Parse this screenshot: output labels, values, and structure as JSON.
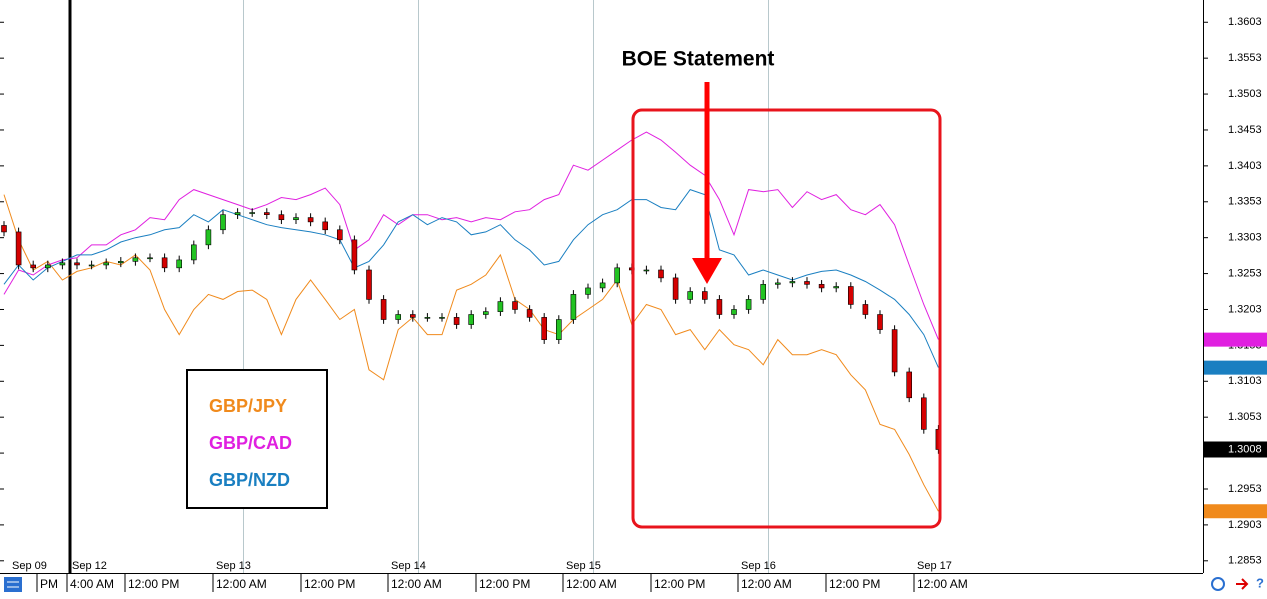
{
  "chart_data": {
    "type": "candlestick",
    "categories": [
      null,
      null,
      null,
      null,
      null,
      null,
      null,
      null,
      null,
      null,
      null,
      null,
      null,
      null,
      null,
      null,
      null,
      null,
      null,
      null,
      null,
      null,
      null,
      null,
      null,
      null,
      null,
      null,
      null,
      null,
      null,
      null,
      null,
      null,
      null,
      null,
      null,
      null,
      null,
      null,
      null,
      null,
      null,
      null,
      null,
      null,
      null,
      null,
      null,
      null,
      null,
      null,
      null,
      null,
      null,
      null,
      null,
      null,
      null,
      null,
      null,
      null,
      null,
      null,
      null
    ],
    "open": [
      1.332,
      1.3311,
      1.3265,
      1.3261,
      1.3265,
      1.3268,
      1.3265,
      1.3265,
      1.3268,
      1.327,
      1.3275,
      1.3275,
      1.3261,
      1.3272,
      1.3293,
      1.3314,
      1.3335,
      1.3338,
      1.3338,
      1.3335,
      1.3328,
      1.3331,
      1.3325,
      1.3314,
      1.33,
      1.3258,
      1.3217,
      1.3189,
      1.3196,
      1.3192,
      1.3192,
      1.3192,
      1.3182,
      1.3196,
      1.32,
      1.3214,
      1.3203,
      1.3192,
      1.3161,
      1.3189,
      1.3224,
      1.3233,
      1.324,
      1.3261,
      1.3258,
      1.3258,
      1.3247,
      1.3217,
      1.3228,
      1.3217,
      1.3196,
      1.3203,
      1.3217,
      1.3238,
      1.324,
      1.3242,
      1.3238,
      1.3233,
      1.3235,
      1.321,
      1.3196,
      1.3175,
      1.3116,
      1.308,
      1.3036
    ],
    "high": [
      1.3326,
      1.3317,
      1.3271,
      1.3271,
      1.3274,
      1.3274,
      1.3271,
      1.3274,
      1.3276,
      1.3281,
      1.3281,
      1.3281,
      1.3278,
      1.3299,
      1.332,
      1.3341,
      1.3344,
      1.3344,
      1.3344,
      1.3341,
      1.3337,
      1.3337,
      1.3331,
      1.332,
      1.3306,
      1.3264,
      1.3223,
      1.3202,
      1.3202,
      1.3198,
      1.3198,
      1.3198,
      1.3202,
      1.3206,
      1.322,
      1.322,
      1.3209,
      1.3198,
      1.3195,
      1.323,
      1.3239,
      1.3246,
      1.3267,
      1.3267,
      1.3264,
      1.3264,
      1.3253,
      1.3234,
      1.3234,
      1.3223,
      1.3209,
      1.3223,
      1.3244,
      1.3246,
      1.3248,
      1.3248,
      1.3244,
      1.3241,
      1.3241,
      1.3216,
      1.3202,
      1.3181,
      1.3122,
      1.3086,
      1.3042
    ],
    "low": [
      1.3305,
      1.3259,
      1.3255,
      1.3255,
      1.3259,
      1.3259,
      1.3259,
      1.3259,
      1.3262,
      1.3264,
      1.3269,
      1.3255,
      1.3255,
      1.3266,
      1.3287,
      1.3308,
      1.3329,
      1.3332,
      1.3329,
      1.3322,
      1.3322,
      1.3319,
      1.3308,
      1.3294,
      1.3252,
      1.3211,
      1.3183,
      1.3183,
      1.3186,
      1.3186,
      1.3186,
      1.3176,
      1.3176,
      1.319,
      1.3194,
      1.3197,
      1.3186,
      1.3155,
      1.3155,
      1.3183,
      1.3218,
      1.3227,
      1.3234,
      1.3252,
      1.3252,
      1.3241,
      1.3211,
      1.3211,
      1.3211,
      1.319,
      1.319,
      1.3197,
      1.3211,
      1.3232,
      1.3234,
      1.3232,
      1.3227,
      1.3227,
      1.3204,
      1.319,
      1.3169,
      1.311,
      1.3074,
      1.303,
      1.3002
    ],
    "close": [
      1.3311,
      1.3265,
      1.3261,
      1.3265,
      1.3268,
      1.3265,
      1.3265,
      1.3268,
      1.327,
      1.3275,
      1.3275,
      1.3261,
      1.3272,
      1.3293,
      1.3314,
      1.3335,
      1.3338,
      1.3338,
      1.3335,
      1.3328,
      1.3331,
      1.3325,
      1.3314,
      1.33,
      1.3258,
      1.3217,
      1.3189,
      1.3196,
      1.3192,
      1.3192,
      1.3192,
      1.3182,
      1.3196,
      1.32,
      1.3214,
      1.3203,
      1.3192,
      1.3161,
      1.3189,
      1.3224,
      1.3233,
      1.324,
      1.3261,
      1.3258,
      1.3258,
      1.3247,
      1.3217,
      1.3228,
      1.3217,
      1.3196,
      1.3203,
      1.3217,
      1.3238,
      1.324,
      1.3242,
      1.3238,
      1.3233,
      1.3235,
      1.321,
      1.3196,
      1.3175,
      1.3116,
      1.308,
      1.3036,
      1.3008
    ],
    "up_color": "#22c322",
    "down_color": "#d40000",
    "current_price": 1.3008,
    "series": [
      {
        "name": "GBP/JPY",
        "color": "#f08a1c",
        "type": "line",
        "values": [
          1.3363,
          1.33,
          1.3258,
          1.327,
          1.3244,
          1.3256,
          1.3261,
          1.327,
          1.3265,
          1.3279,
          1.3258,
          1.3203,
          1.3168,
          1.3203,
          1.3224,
          1.3217,
          1.3228,
          1.323,
          1.3217,
          1.3168,
          1.3217,
          1.3244,
          1.3217,
          1.3189,
          1.3203,
          1.3119,
          1.3105,
          1.3175,
          1.3192,
          1.3168,
          1.3168,
          1.323,
          1.3238,
          1.3251,
          1.3279,
          1.3217,
          1.3203,
          1.3175,
          1.3168,
          1.3189,
          1.3203,
          1.3217,
          1.3244,
          1.3182,
          1.321,
          1.3203,
          1.3168,
          1.3175,
          1.3147,
          1.3175,
          1.3154,
          1.3147,
          1.3126,
          1.3161,
          1.314,
          1.314,
          1.3147,
          1.314,
          1.3112,
          1.3091,
          1.3043,
          1.3036,
          1.3001,
          1.2959,
          1.2922
        ]
      },
      {
        "name": "GBP/CAD",
        "color": "#e020e0",
        "type": "line",
        "values": [
          1.3224,
          1.3258,
          1.3251,
          1.3265,
          1.3272,
          1.3275,
          1.3293,
          1.3293,
          1.3307,
          1.3314,
          1.3331,
          1.3328,
          1.3356,
          1.337,
          1.3363,
          1.3356,
          1.3349,
          1.3342,
          1.3349,
          1.3359,
          1.3356,
          1.3363,
          1.3372,
          1.3349,
          1.3286,
          1.33,
          1.3335,
          1.3321,
          1.3335,
          1.3335,
          1.3328,
          1.3331,
          1.3325,
          1.3331,
          1.3328,
          1.3339,
          1.3342,
          1.3356,
          1.3363,
          1.3404,
          1.3397,
          1.3411,
          1.3425,
          1.3439,
          1.345,
          1.3439,
          1.3422,
          1.3404,
          1.339,
          1.3356,
          1.3307,
          1.337,
          1.3367,
          1.337,
          1.3345,
          1.3367,
          1.3356,
          1.3363,
          1.3342,
          1.3335,
          1.3349,
          1.3321,
          1.3265,
          1.321,
          1.3161
        ]
      },
      {
        "name": "GBP/NZD",
        "color": "#1a7fc1",
        "type": "line",
        "values": [
          1.3238,
          1.3265,
          1.3244,
          1.3261,
          1.327,
          1.3279,
          1.3279,
          1.3286,
          1.3297,
          1.3303,
          1.3307,
          1.3314,
          1.3317,
          1.3335,
          1.3325,
          1.3342,
          1.3335,
          1.3328,
          1.3321,
          1.3317,
          1.3314,
          1.3311,
          1.3307,
          1.33,
          1.3261,
          1.327,
          1.3293,
          1.3325,
          1.3335,
          1.3321,
          1.3331,
          1.3325,
          1.3307,
          1.3311,
          1.3321,
          1.33,
          1.3286,
          1.3265,
          1.327,
          1.33,
          1.3321,
          1.3335,
          1.3342,
          1.3356,
          1.3356,
          1.3345,
          1.3342,
          1.337,
          1.3363,
          1.3286,
          1.3279,
          1.3251,
          1.3258,
          1.3251,
          1.3244,
          1.3251,
          1.3256,
          1.3258,
          1.3251,
          1.3242,
          1.323,
          1.3217,
          1.3196,
          1.3168,
          1.3122
        ]
      }
    ],
    "ylim": [
      1.2836,
      1.3634
    ],
    "yticks": [
      {
        "value": 1.3603,
        "label": "1.3603"
      },
      {
        "value": 1.3553,
        "label": "1.3553"
      },
      {
        "value": 1.3503,
        "label": "1.3503"
      },
      {
        "value": 1.3453,
        "label": "1.3453"
      },
      {
        "value": 1.3403,
        "label": "1.3403"
      },
      {
        "value": 1.3353,
        "label": "1.3353"
      },
      {
        "value": 1.3303,
        "label": "1.3303"
      },
      {
        "value": 1.3253,
        "label": "1.3253"
      },
      {
        "value": 1.3203,
        "label": "1.3203"
      },
      {
        "value": 1.3153,
        "label": "1.3153"
      },
      {
        "value": 1.3103,
        "label": "1.3103"
      },
      {
        "value": 1.3053,
        "label": "1.3053"
      },
      {
        "value": 1.3003,
        "label": "1.3003"
      },
      {
        "value": 1.2953,
        "label": "1.2953"
      },
      {
        "value": 1.2903,
        "label": "1.2903"
      },
      {
        "value": 1.2853,
        "label": "1.2853"
      }
    ],
    "x_dates": [
      "Sep 09",
      "Sep 12",
      "Sep 13",
      "Sep 14",
      "Sep 15",
      "Sep 16",
      "Sep 17"
    ],
    "x_times": [
      "PM",
      "4:00 AM",
      "12:00 PM",
      "12:00 AM",
      "12:00 PM",
      "12:00 AM",
      "12:00 PM",
      "12:00 AM",
      "12:00 PM",
      "12:00 AM",
      "12:00 PM",
      "12:00 AM"
    ],
    "legend": "lower left",
    "annotations": [
      {
        "text": "BOE Statement"
      }
    ]
  }
}
